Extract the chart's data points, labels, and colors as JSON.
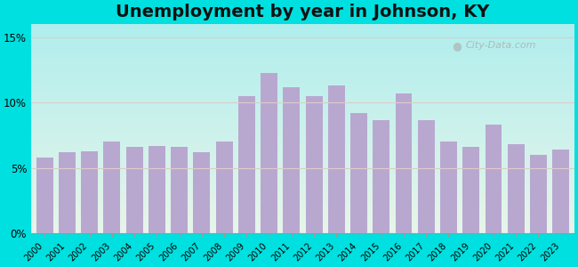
{
  "title": "Unemployment by year in Johnson, KY",
  "years": [
    2000,
    2001,
    2002,
    2003,
    2004,
    2005,
    2006,
    2007,
    2008,
    2009,
    2010,
    2011,
    2012,
    2013,
    2014,
    2015,
    2016,
    2017,
    2018,
    2019,
    2020,
    2021,
    2022,
    2023
  ],
  "values": [
    5.8,
    6.2,
    6.3,
    7.0,
    6.6,
    6.7,
    6.6,
    6.2,
    7.0,
    10.5,
    12.3,
    11.2,
    10.5,
    11.3,
    9.2,
    8.7,
    10.7,
    8.7,
    7.0,
    6.6,
    8.3,
    6.8,
    6.0,
    6.4
  ],
  "bar_color": "#b8a8d0",
  "bg_outer": "#00e0e0",
  "yticks": [
    0,
    5,
    10,
    15
  ],
  "ylim": [
    0,
    16
  ],
  "title_fontsize": 14,
  "watermark": "City-Data.com",
  "grad_top": "#e8f5e9",
  "grad_bottom": "#c0eeee"
}
